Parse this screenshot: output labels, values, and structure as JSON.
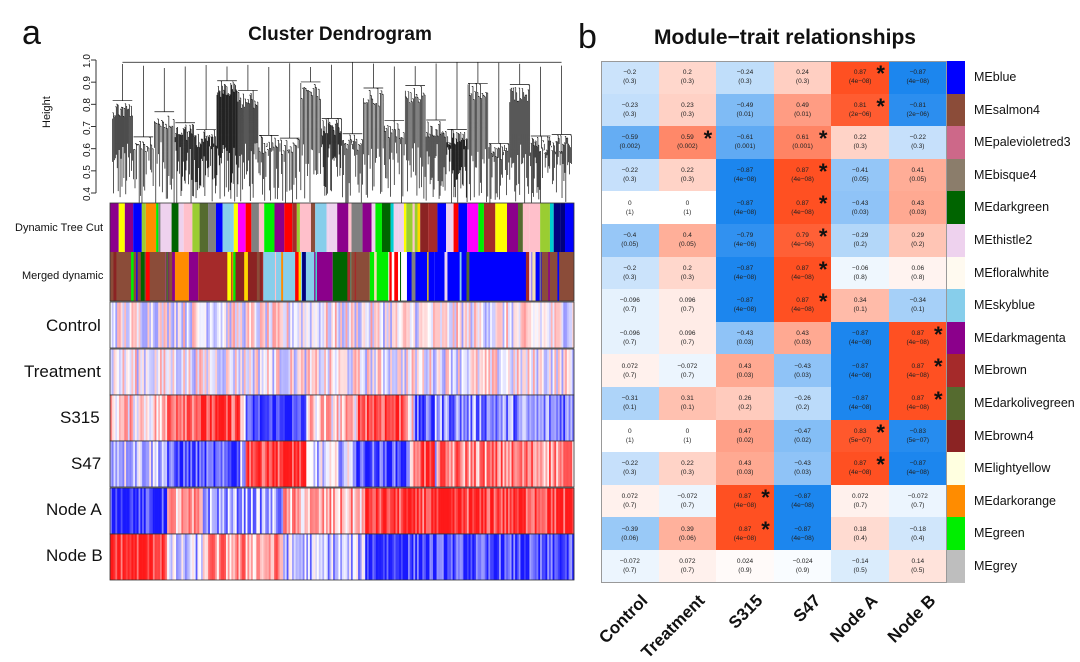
{
  "panel_a": {
    "letter": "a",
    "title": "Cluster Dendrogram",
    "ylabel": "Height",
    "yticks": [
      "0.4",
      "0.5",
      "0.6",
      "0.7",
      "0.8",
      "0.9",
      "1.0"
    ],
    "row_labels": {
      "dynamic": "Dynamic Tree Cut",
      "merged": "Merged dynamic",
      "traits": [
        "Control",
        "Treatment",
        "S315",
        "S47",
        "Node A",
        "Node B"
      ]
    }
  },
  "panel_b": {
    "letter": "b",
    "title": "Module−trait relationships",
    "traits": [
      "Control",
      "Treatment",
      "S315",
      "S47",
      "Node A",
      "Node B"
    ]
  },
  "chart_data": {
    "type": "heatmap",
    "title": "Module−trait relationships",
    "columns": [
      "Control",
      "Treatment",
      "S315",
      "S47",
      "Node A",
      "Node B"
    ],
    "rows": [
      {
        "module": "MEblue",
        "color": "#0000ff",
        "cells": [
          [
            "−0.2",
            "(0.3)"
          ],
          [
            "0.2",
            "(0.3)"
          ],
          [
            "−0.24",
            "(0.3)"
          ],
          [
            "0.24",
            "(0.3)"
          ],
          [
            "0.87",
            "(4e−08)"
          ],
          [
            "−0.87",
            "(4e−08)"
          ]
        ],
        "r": [
          -0.2,
          0.2,
          -0.24,
          0.24,
          0.87,
          -0.87
        ],
        "star": [
          false,
          false,
          false,
          false,
          true,
          false
        ]
      },
      {
        "module": "MEsalmon4",
        "color": "#8b4c39",
        "cells": [
          [
            "−0.23",
            "(0.3)"
          ],
          [
            "0.23",
            "(0.3)"
          ],
          [
            "−0.49",
            "(0.01)"
          ],
          [
            "0.49",
            "(0.01)"
          ],
          [
            "0.81",
            "(2e−06)"
          ],
          [
            "−0.81",
            "(2e−06)"
          ]
        ],
        "r": [
          -0.23,
          0.23,
          -0.49,
          0.49,
          0.81,
          -0.81
        ],
        "star": [
          false,
          false,
          false,
          false,
          true,
          false
        ]
      },
      {
        "module": "MEpalevioletred3",
        "color": "#cd6889",
        "cells": [
          [
            "−0.59",
            "(0.002)"
          ],
          [
            "0.59",
            "(0.002)"
          ],
          [
            "−0.61",
            "(0.001)"
          ],
          [
            "0.61",
            "(0.001)"
          ],
          [
            "0.22",
            "(0.3)"
          ],
          [
            "−0.22",
            "(0.3)"
          ]
        ],
        "r": [
          -0.59,
          0.59,
          -0.61,
          0.61,
          0.22,
          -0.22
        ],
        "star": [
          false,
          true,
          false,
          true,
          false,
          false
        ]
      },
      {
        "module": "MEbisque4",
        "color": "#8b7d6b",
        "cells": [
          [
            "−0.22",
            "(0.3)"
          ],
          [
            "0.22",
            "(0.3)"
          ],
          [
            "−0.87",
            "(4e−08)"
          ],
          [
            "0.87",
            "(4e−08)"
          ],
          [
            "−0.41",
            "(0.05)"
          ],
          [
            "0.41",
            "(0.05)"
          ]
        ],
        "r": [
          -0.22,
          0.22,
          -0.87,
          0.87,
          -0.41,
          0.41
        ],
        "star": [
          false,
          false,
          false,
          true,
          false,
          false
        ]
      },
      {
        "module": "MEdarkgreen",
        "color": "#006400",
        "cells": [
          [
            "0",
            "(1)"
          ],
          [
            "0",
            "(1)"
          ],
          [
            "−0.87",
            "(4e−08)"
          ],
          [
            "0.87",
            "(4e−08)"
          ],
          [
            "−0.43",
            "(0.03)"
          ],
          [
            "0.43",
            "(0.03)"
          ]
        ],
        "r": [
          0,
          0,
          -0.87,
          0.87,
          -0.43,
          0.43
        ],
        "star": [
          false,
          false,
          false,
          true,
          false,
          false
        ]
      },
      {
        "module": "MEthistle2",
        "color": "#eed2ee",
        "cells": [
          [
            "−0.4",
            "(0.05)"
          ],
          [
            "0.4",
            "(0.05)"
          ],
          [
            "−0.79",
            "(4e−06)"
          ],
          [
            "0.79",
            "(4e−06)"
          ],
          [
            "−0.29",
            "(0.2)"
          ],
          [
            "0.29",
            "(0.2)"
          ]
        ],
        "r": [
          -0.4,
          0.4,
          -0.79,
          0.79,
          -0.29,
          0.29
        ],
        "star": [
          false,
          false,
          false,
          true,
          false,
          false
        ]
      },
      {
        "module": "MEfloralwhite",
        "color": "#fffaf0",
        "cells": [
          [
            "−0.2",
            "(0.3)"
          ],
          [
            "0.2",
            "(0.3)"
          ],
          [
            "−0.87",
            "(4e−08)"
          ],
          [
            "0.87",
            "(4e−08)"
          ],
          [
            "−0.06",
            "(0.8)"
          ],
          [
            "0.06",
            "(0.8)"
          ]
        ],
        "r": [
          -0.2,
          0.2,
          -0.87,
          0.87,
          -0.06,
          0.06
        ],
        "star": [
          false,
          false,
          false,
          true,
          false,
          false
        ]
      },
      {
        "module": "MEskyblue",
        "color": "#87ceeb",
        "cells": [
          [
            "−0.096",
            "(0.7)"
          ],
          [
            "0.096",
            "(0.7)"
          ],
          [
            "−0.87",
            "(4e−08)"
          ],
          [
            "0.87",
            "(4e−08)"
          ],
          [
            "0.34",
            "(0.1)"
          ],
          [
            "−0.34",
            "(0.1)"
          ]
        ],
        "r": [
          -0.096,
          0.096,
          -0.87,
          0.87,
          0.34,
          -0.34
        ],
        "star": [
          false,
          false,
          false,
          true,
          false,
          false
        ]
      },
      {
        "module": "MEdarkmagenta",
        "color": "#8b008b",
        "cells": [
          [
            "−0.096",
            "(0.7)"
          ],
          [
            "0.096",
            "(0.7)"
          ],
          [
            "−0.43",
            "(0.03)"
          ],
          [
            "0.43",
            "(0.03)"
          ],
          [
            "−0.87",
            "(4e−08)"
          ],
          [
            "0.87",
            "(4e−08)"
          ]
        ],
        "r": [
          -0.096,
          0.096,
          -0.43,
          0.43,
          -0.87,
          0.87
        ],
        "star": [
          false,
          false,
          false,
          false,
          false,
          true
        ]
      },
      {
        "module": "MEbrown",
        "color": "#a52a2a",
        "cells": [
          [
            "0.072",
            "(0.7)"
          ],
          [
            "−0.072",
            "(0.7)"
          ],
          [
            "0.43",
            "(0.03)"
          ],
          [
            "−0.43",
            "(0.03)"
          ],
          [
            "−0.87",
            "(4e−08)"
          ],
          [
            "0.87",
            "(4e−08)"
          ]
        ],
        "r": [
          0.072,
          -0.072,
          0.43,
          -0.43,
          -0.87,
          0.87
        ],
        "star": [
          false,
          false,
          false,
          false,
          false,
          true
        ]
      },
      {
        "module": "MEdarkolivegreen",
        "color": "#556b2f",
        "cells": [
          [
            "−0.31",
            "(0.1)"
          ],
          [
            "0.31",
            "(0.1)"
          ],
          [
            "0.26",
            "(0.2)"
          ],
          [
            "−0.26",
            "(0.2)"
          ],
          [
            "−0.87",
            "(4e−08)"
          ],
          [
            "0.87",
            "(4e−08)"
          ]
        ],
        "r": [
          -0.31,
          0.31,
          0.26,
          -0.26,
          -0.87,
          0.87
        ],
        "star": [
          false,
          false,
          false,
          false,
          false,
          true
        ]
      },
      {
        "module": "MEbrown4",
        "color": "#8b2323",
        "cells": [
          [
            "0",
            "(1)"
          ],
          [
            "0",
            "(1)"
          ],
          [
            "0.47",
            "(0.02)"
          ],
          [
            "−0.47",
            "(0.02)"
          ],
          [
            "0.83",
            "(5e−07)"
          ],
          [
            "−0.83",
            "(5e−07)"
          ]
        ],
        "r": [
          0,
          0,
          0.47,
          -0.47,
          0.83,
          -0.83
        ],
        "star": [
          false,
          false,
          false,
          false,
          true,
          false
        ]
      },
      {
        "module": "MElightyellow",
        "color": "#ffffe0",
        "cells": [
          [
            "−0.22",
            "(0.3)"
          ],
          [
            "0.22",
            "(0.3)"
          ],
          [
            "0.43",
            "(0.03)"
          ],
          [
            "−0.43",
            "(0.03)"
          ],
          [
            "0.87",
            "(4e−08)"
          ],
          [
            "−0.87",
            "(4e−08)"
          ]
        ],
        "r": [
          -0.22,
          0.22,
          0.43,
          -0.43,
          0.87,
          -0.87
        ],
        "star": [
          false,
          false,
          false,
          false,
          true,
          false
        ]
      },
      {
        "module": "MEdarkorange",
        "color": "#ff8c00",
        "cells": [
          [
            "0.072",
            "(0.7)"
          ],
          [
            "−0.072",
            "(0.7)"
          ],
          [
            "0.87",
            "(4e−08)"
          ],
          [
            "−0.87",
            "(4e−08)"
          ],
          [
            "0.072",
            "(0.7)"
          ],
          [
            "−0.072",
            "(0.7)"
          ]
        ],
        "r": [
          0.072,
          -0.072,
          0.87,
          -0.87,
          0.072,
          -0.072
        ],
        "star": [
          false,
          false,
          true,
          false,
          false,
          false
        ]
      },
      {
        "module": "MEgreen",
        "color": "#00ee00",
        "cells": [
          [
            "−0.39",
            "(0.06)"
          ],
          [
            "0.39",
            "(0.06)"
          ],
          [
            "0.87",
            "(4e−08)"
          ],
          [
            "−0.87",
            "(4e−08)"
          ],
          [
            "0.18",
            "(0.4)"
          ],
          [
            "−0.18",
            "(0.4)"
          ]
        ],
        "r": [
          -0.39,
          0.39,
          0.87,
          -0.87,
          0.18,
          -0.18
        ],
        "star": [
          false,
          false,
          true,
          false,
          false,
          false
        ]
      },
      {
        "module": "MEgrey",
        "color": "#bebebe",
        "cells": [
          [
            "−0.072",
            "(0.7)"
          ],
          [
            "0.072",
            "(0.7)"
          ],
          [
            "0.024",
            "(0.9)"
          ],
          [
            "−0.024",
            "(0.9)"
          ],
          [
            "−0.14",
            "(0.5)"
          ],
          [
            "0.14",
            "(0.5)"
          ]
        ],
        "r": [
          -0.072,
          0.072,
          0.024,
          -0.024,
          -0.14,
          0.14
        ],
        "star": [
          false,
          false,
          false,
          false,
          false,
          false
        ]
      }
    ]
  }
}
